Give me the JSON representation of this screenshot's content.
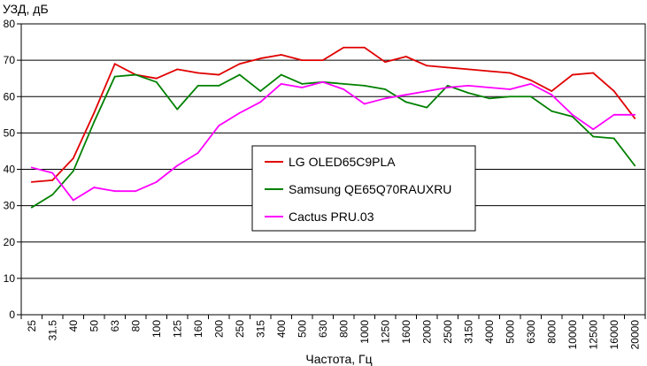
{
  "chart_data": {
    "type": "line",
    "ylabel": "УЗД, дБ",
    "xlabel": "Частота, Гц",
    "ylim": [
      0,
      80
    ],
    "yticks": [
      0,
      10,
      20,
      30,
      40,
      50,
      60,
      70,
      80
    ],
    "grid": "horizontal",
    "legend_position": "center",
    "categories": [
      "25",
      "31.5",
      "40",
      "50",
      "63",
      "80",
      "100",
      "125",
      "160",
      "200",
      "250",
      "315",
      "400",
      "500",
      "630",
      "800",
      "1000",
      "1250",
      "1600",
      "2000",
      "2500",
      "3150",
      "4000",
      "5000",
      "6300",
      "8000",
      "10000",
      "12500",
      "16000",
      "20000"
    ],
    "series": [
      {
        "name": "LG OLED65C9PLA",
        "color": "#e00000",
        "values": [
          36.5,
          37.0,
          43.0,
          55.5,
          69.0,
          66.0,
          65.0,
          67.5,
          66.5,
          66.0,
          69.0,
          70.5,
          71.5,
          70.0,
          70.0,
          73.5,
          73.5,
          69.5,
          71.0,
          68.5,
          68.0,
          67.5,
          67.0,
          66.5,
          64.5,
          61.5,
          66.0,
          66.5,
          61.5,
          54.0
        ]
      },
      {
        "name": "Samsung QE65Q70RAUXRU",
        "color": "#008000",
        "values": [
          29.5,
          33.0,
          39.5,
          53.0,
          65.5,
          66.0,
          64.0,
          56.5,
          63.0,
          63.0,
          66.0,
          61.5,
          66.0,
          63.5,
          64.0,
          63.5,
          63.0,
          62.0,
          58.5,
          57.0,
          63.0,
          61.0,
          59.5,
          60.0,
          60.0,
          56.0,
          54.5,
          49.0,
          48.5,
          41.0
        ]
      },
      {
        "name": "Cactus PRU.03",
        "color": "#ff00ff",
        "values": [
          40.5,
          39.0,
          31.5,
          35.0,
          34.0,
          34.0,
          36.5,
          41.0,
          44.5,
          52.0,
          55.5,
          58.5,
          63.5,
          62.5,
          64.0,
          62.0,
          58.0,
          59.5,
          60.5,
          61.5,
          62.5,
          63.0,
          62.5,
          62.0,
          63.5,
          60.5,
          55.0,
          51.0,
          55.0,
          55.0
        ]
      }
    ]
  }
}
